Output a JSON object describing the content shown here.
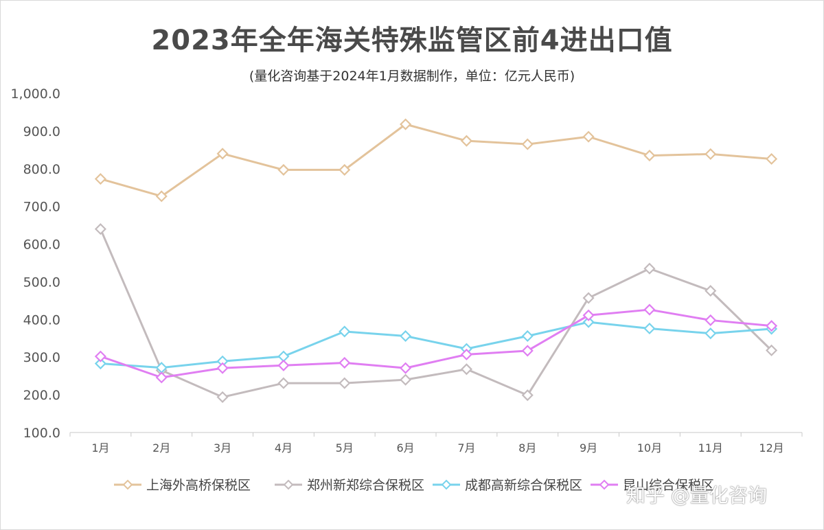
{
  "chart_data": {
    "type": "line",
    "title": "2023年全年海关特殊监管区前4进出口值",
    "subtitle": "(量化咨询基于2024年1月数据制作，单位：亿元人民币)",
    "categories": [
      "1月",
      "2月",
      "3月",
      "4月",
      "5月",
      "6月",
      "7月",
      "8月",
      "9月",
      "10月",
      "11月",
      "12月"
    ],
    "ylim": [
      100,
      1000
    ],
    "yticks": [
      "100.0",
      "200.0",
      "300.0",
      "400.0",
      "500.0",
      "600.0",
      "700.0",
      "800.0",
      "900.0",
      "1,000.0"
    ],
    "grid": false,
    "legend_position": "bottom",
    "series": [
      {
        "name": "上海外高桥保税区",
        "color": "#e3c39b",
        "values": [
          773,
          727,
          840,
          797,
          797,
          918,
          874,
          865,
          885,
          835,
          839,
          826
        ]
      },
      {
        "name": "郑州新郑综合保税区",
        "color": "#c3bbbd",
        "values": [
          640,
          265,
          194,
          231,
          231,
          240,
          268,
          199,
          457,
          535,
          476,
          318
        ]
      },
      {
        "name": "成都高新综合保税区",
        "color": "#78d3ec",
        "values": [
          283,
          272,
          289,
          302,
          368,
          356,
          322,
          356,
          393,
          376,
          363,
          375
        ]
      },
      {
        "name": "昆山综合保税区",
        "color": "#e07ef2",
        "values": [
          302,
          246,
          271,
          278,
          285,
          271,
          307,
          317,
          411,
          426,
          398,
          383
        ]
      }
    ]
  },
  "watermark": "知乎 @量化咨询"
}
